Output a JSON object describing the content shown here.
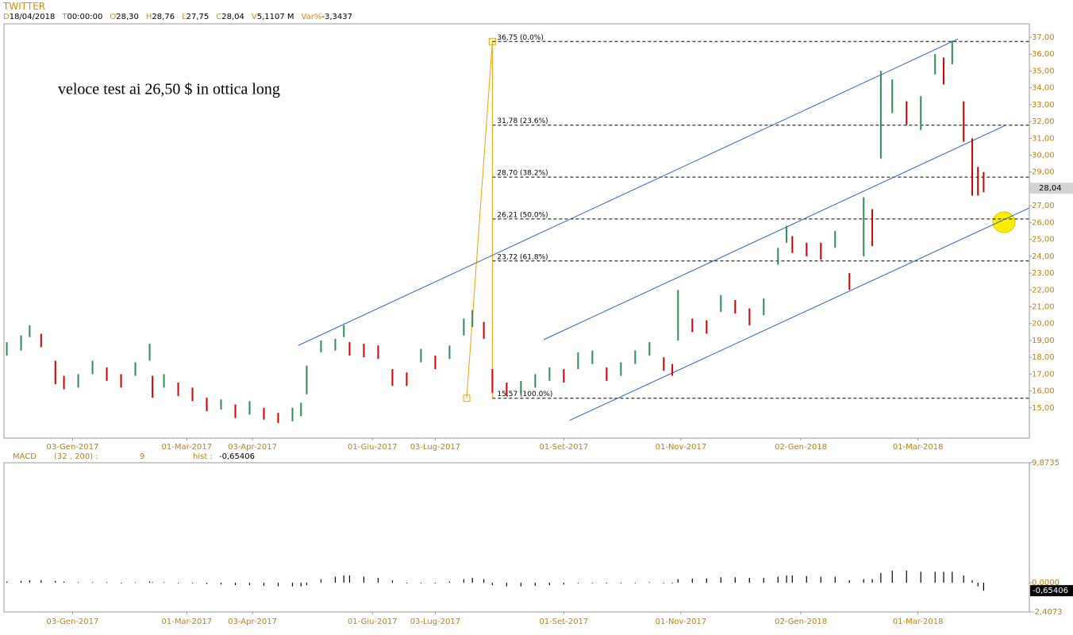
{
  "header": {
    "title": "TWITTER",
    "fields": [
      {
        "key": "D",
        "value": "18/04/2018"
      },
      {
        "key": "T",
        "value": "00:00:00"
      },
      {
        "key": "O",
        "value": "28,30"
      },
      {
        "key": "H",
        "value": "28,76"
      },
      {
        "key": "L",
        "value": "27,75"
      },
      {
        "key": "C",
        "value": "28,04"
      },
      {
        "key": "V",
        "value": "5,1107 M"
      },
      {
        "key": "Var%",
        "value": "-3,3437"
      }
    ]
  },
  "chart_data": [
    {
      "type": "ohlc",
      "annotation": "veloce test ai 26,50 $ in ottica long",
      "xlim": [
        -1,
        358
      ],
      "xticks": [
        {
          "value": 23,
          "label": "03-Gen-2017"
        },
        {
          "value": 63,
          "label": "01-Mar-2017"
        },
        {
          "value": 86,
          "label": "03-Apr-2017"
        },
        {
          "value": 128,
          "label": "01-Giu-2017"
        },
        {
          "value": 150,
          "label": "03-Lug-2017"
        },
        {
          "value": 195,
          "label": "01-Set-2017"
        },
        {
          "value": 236,
          "label": "01-Nov-2017"
        },
        {
          "value": 278,
          "label": "02-Gen-2018"
        },
        {
          "value": 319,
          "label": "01-Mar-2018"
        }
      ],
      "ylim": [
        13.2,
        37.8
      ],
      "yticks": [
        {
          "value": 15,
          "label": "15,00"
        },
        {
          "value": 16,
          "label": "16,00"
        },
        {
          "value": 17,
          "label": "17,00"
        },
        {
          "value": 18,
          "label": "18,00"
        },
        {
          "value": 19,
          "label": "19,00"
        },
        {
          "value": 20,
          "label": "20,00"
        },
        {
          "value": 21,
          "label": "21,00"
        },
        {
          "value": 22,
          "label": "22,00"
        },
        {
          "value": 23,
          "label": "23,00"
        },
        {
          "value": 24,
          "label": "24,00"
        },
        {
          "value": 25,
          "label": "25,00"
        },
        {
          "value": 26,
          "label": "26,00"
        },
        {
          "value": 27,
          "label": "27,00"
        },
        {
          "value": 28,
          "label": "28,00"
        },
        {
          "value": 29,
          "label": "29,00"
        },
        {
          "value": 30,
          "label": "30,00"
        },
        {
          "value": 31,
          "label": "31,00"
        },
        {
          "value": 32,
          "label": "32,00"
        },
        {
          "value": 33,
          "label": "33,00"
        },
        {
          "value": 34,
          "label": "34,00"
        },
        {
          "value": 35,
          "label": "35,00"
        },
        {
          "value": 36,
          "label": "36,00"
        },
        {
          "value": 37,
          "label": "37,00"
        }
      ],
      "up_color": "#2e8b57",
      "down_color": "#d40000",
      "x": [
        0,
        5,
        8,
        12,
        17,
        20,
        25,
        30,
        35,
        40,
        45,
        50,
        51,
        55,
        60,
        65,
        70,
        75,
        80,
        85,
        90,
        95,
        100,
        103,
        105,
        110,
        115,
        118,
        120,
        125,
        130,
        135,
        140,
        145,
        150,
        155,
        160,
        163,
        167,
        170,
        175,
        180,
        185,
        190,
        195,
        200,
        205,
        210,
        215,
        220,
        225,
        230,
        233,
        235,
        240,
        245,
        250,
        255,
        260,
        265,
        270,
        273,
        275,
        280,
        285,
        290,
        295,
        300,
        303,
        306,
        310,
        315,
        320,
        325,
        328,
        331,
        335,
        338,
        340,
        342
      ],
      "high": [
        18.9,
        19.3,
        19.9,
        19.4,
        17.8,
        16.9,
        17.0,
        17.8,
        17.4,
        17.0,
        17.7,
        18.8,
        16.9,
        17.0,
        16.5,
        16.2,
        15.6,
        15.5,
        15.2,
        15.4,
        15.0,
        14.7,
        15.0,
        15.3,
        17.5,
        19.0,
        19.1,
        19.9,
        18.9,
        18.8,
        18.7,
        17.3,
        17.1,
        18.5,
        18.1,
        18.7,
        20.3,
        20.8,
        20.1,
        17.3,
        16.5,
        16.6,
        17.0,
        17.4,
        17.3,
        18.3,
        18.4,
        17.4,
        17.7,
        18.4,
        18.9,
        18.0,
        17.6,
        22.0,
        20.3,
        20.2,
        21.7,
        21.4,
        20.9,
        21.5,
        24.5,
        25.8,
        25.2,
        24.8,
        24.8,
        25.5,
        23.0,
        27.5,
        26.8,
        35.0,
        34.5,
        33.2,
        33.5,
        36.0,
        35.8,
        36.8,
        33.2,
        31.0,
        29.3,
        29.0
      ],
      "low": [
        18.1,
        18.4,
        19.2,
        18.6,
        16.4,
        16.1,
        16.2,
        17.0,
        16.6,
        16.2,
        16.9,
        17.8,
        15.6,
        16.2,
        15.7,
        15.4,
        14.8,
        14.9,
        14.4,
        14.6,
        14.3,
        14.1,
        14.2,
        14.5,
        15.8,
        18.3,
        18.4,
        19.2,
        18.1,
        18.0,
        17.9,
        16.3,
        16.3,
        17.7,
        17.3,
        17.9,
        19.3,
        19.8,
        19.1,
        15.9,
        15.7,
        15.8,
        16.2,
        16.6,
        16.5,
        17.3,
        17.6,
        16.6,
        16.9,
        17.6,
        18.1,
        17.2,
        16.9,
        19.0,
        19.5,
        19.4,
        20.7,
        20.6,
        19.9,
        20.5,
        23.5,
        24.8,
        24.2,
        24.0,
        23.8,
        24.5,
        22.0,
        24.0,
        24.6,
        29.8,
        32.5,
        31.8,
        31.5,
        34.8,
        34.2,
        35.4,
        30.8,
        27.6,
        27.6,
        27.8
      ],
      "trendline_color": "#2a62c9",
      "trendlines": [
        {
          "x": [
            102,
            333
          ],
          "y": [
            18.7,
            36.9
          ]
        },
        {
          "x": [
            188,
            350
          ],
          "y": [
            19.05,
            31.8
          ]
        },
        {
          "x": [
            197,
            358
          ],
          "y": [
            14.25,
            26.87
          ]
        }
      ],
      "fib_color": "#f0a000",
      "fib_x": [
        161,
        170
      ],
      "fib_levels": [
        {
          "value": 36.75,
          "label": "36,75 (0.0%)"
        },
        {
          "value": 31.78,
          "label": "31,78 (23.6%)"
        },
        {
          "value": 28.7,
          "label": "28,70 (38.2%)"
        },
        {
          "value": 26.21,
          "label": "26,21 (50.0%)"
        },
        {
          "value": 23.72,
          "label": "23,72 (61.8%)"
        },
        {
          "value": 15.57,
          "label": "15,57 (100.0%)"
        }
      ],
      "last_price": {
        "value": 28.04,
        "label": "28,04"
      }
    },
    {
      "type": "bar",
      "title": "MACD",
      "params": "(32 , 200) :",
      "signal": "9",
      "hist_name": "hist :",
      "xlim": [
        -1,
        358
      ],
      "xticks": [
        {
          "value": 23,
          "label": "03-Gen-2017"
        },
        {
          "value": 63,
          "label": "01-Mar-2017"
        },
        {
          "value": 86,
          "label": "03-Apr-2017"
        },
        {
          "value": 128,
          "label": "01-Giu-2017"
        },
        {
          "value": 150,
          "label": "03-Lug-2017"
        },
        {
          "value": 195,
          "label": "01-Set-2017"
        },
        {
          "value": 236,
          "label": "01-Nov-2017"
        },
        {
          "value": 278,
          "label": "02-Gen-2018"
        },
        {
          "value": 319,
          "label": "01-Mar-2018"
        }
      ],
      "ylim": [
        -2.4073,
        9.8735
      ],
      "yticks": [
        {
          "value": 9.8735,
          "label": "9,8735"
        },
        {
          "value": 0,
          "label": "0,0000"
        },
        {
          "value": -2.4073,
          "label": "-2,4073"
        }
      ],
      "color": "#000000",
      "x": [
        0,
        5,
        8,
        12,
        17,
        20,
        25,
        30,
        35,
        40,
        45,
        50,
        51,
        55,
        60,
        65,
        70,
        75,
        80,
        85,
        90,
        95,
        100,
        103,
        105,
        110,
        115,
        118,
        120,
        125,
        130,
        135,
        140,
        145,
        150,
        155,
        160,
        163,
        167,
        170,
        175,
        180,
        185,
        190,
        195,
        200,
        205,
        210,
        215,
        220,
        225,
        230,
        233,
        235,
        240,
        245,
        250,
        255,
        260,
        265,
        270,
        273,
        275,
        280,
        285,
        290,
        295,
        300,
        303,
        306,
        310,
        315,
        320,
        325,
        328,
        331,
        335,
        338,
        340,
        342
      ],
      "values": [
        0.1,
        0.15,
        0.2,
        0.2,
        0.15,
        0.1,
        0.05,
        0.05,
        0.05,
        0.0,
        0.05,
        0.1,
        0.05,
        0.05,
        0.0,
        -0.05,
        -0.1,
        -0.15,
        -0.2,
        -0.2,
        -0.25,
        -0.3,
        -0.3,
        -0.3,
        -0.2,
        0.3,
        0.5,
        0.6,
        0.6,
        0.5,
        0.4,
        0.2,
        0.0,
        0.0,
        0.0,
        0.1,
        0.3,
        0.4,
        0.3,
        -0.2,
        -0.3,
        -0.3,
        -0.25,
        -0.2,
        -0.15,
        -0.05,
        0.0,
        -0.05,
        -0.05,
        0.0,
        0.05,
        0.0,
        -0.05,
        0.3,
        0.35,
        0.35,
        0.45,
        0.45,
        0.4,
        0.4,
        0.5,
        0.6,
        0.6,
        0.55,
        0.5,
        0.5,
        0.2,
        0.3,
        0.3,
        0.8,
        1.0,
        1.0,
        0.9,
        0.9,
        0.9,
        0.9,
        0.6,
        0.2,
        -0.3,
        -0.65406
      ],
      "last_value": {
        "value": -0.65406,
        "label": "-0,65406"
      }
    }
  ]
}
